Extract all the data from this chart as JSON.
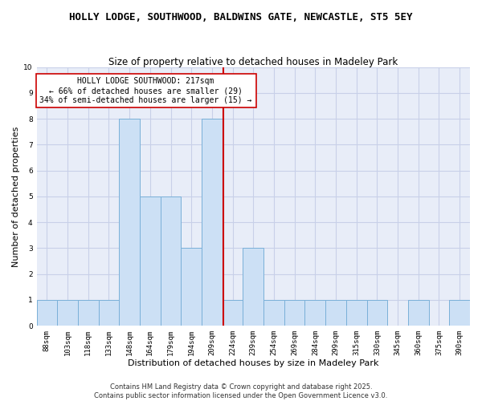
{
  "title": "HOLLY LODGE, SOUTHWOOD, BALDWINS GATE, NEWCASTLE, ST5 5EY",
  "subtitle": "Size of property relative to detached houses in Madeley Park",
  "xlabel": "Distribution of detached houses by size in Madeley Park",
  "ylabel": "Number of detached properties",
  "categories": [
    "88sqm",
    "103sqm",
    "118sqm",
    "133sqm",
    "148sqm",
    "164sqm",
    "179sqm",
    "194sqm",
    "209sqm",
    "224sqm",
    "239sqm",
    "254sqm",
    "269sqm",
    "284sqm",
    "299sqm",
    "315sqm",
    "330sqm",
    "345sqm",
    "360sqm",
    "375sqm",
    "390sqm"
  ],
  "values": [
    1,
    1,
    1,
    1,
    8,
    5,
    5,
    3,
    8,
    1,
    3,
    1,
    1,
    1,
    1,
    1,
    1,
    0,
    1,
    0,
    1
  ],
  "bar_color": "#cce0f5",
  "bar_edge_color": "#7ab0d8",
  "vline_color": "#cc0000",
  "annotation_text": "HOLLY LODGE SOUTHWOOD: 217sqm\n← 66% of detached houses are smaller (29)\n34% of semi-detached houses are larger (15) →",
  "annotation_box_color": "#ffffff",
  "annotation_box_edge_color": "#cc0000",
  "ylim": [
    0,
    10
  ],
  "yticks": [
    0,
    1,
    2,
    3,
    4,
    5,
    6,
    7,
    8,
    9,
    10
  ],
  "grid_color": "#c8d0e8",
  "plot_bg_color": "#e8edf8",
  "fig_bg_color": "#ffffff",
  "footer_text": "Contains HM Land Registry data © Crown copyright and database right 2025.\nContains public sector information licensed under the Open Government Licence v3.0.",
  "title_fontsize": 9,
  "subtitle_fontsize": 8.5,
  "axis_label_fontsize": 8,
  "tick_fontsize": 6.5,
  "annotation_fontsize": 7,
  "footer_fontsize": 6
}
